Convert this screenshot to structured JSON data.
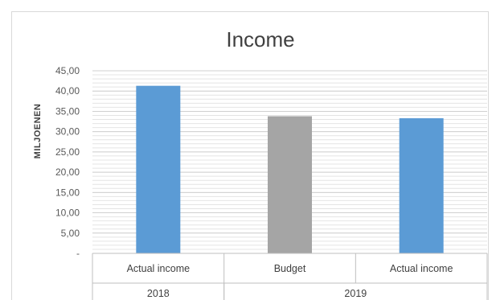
{
  "chart_data": {
    "type": "bar",
    "title": "Income",
    "ylabel": "MILJOENEN",
    "xlabel": "",
    "ylim": [
      0,
      45
    ],
    "ytick_step": 5,
    "ytick_labels": [
      "-",
      "5,00",
      "10,00",
      "15,00",
      "20,00",
      "25,00",
      "30,00",
      "35,00",
      "40,00",
      "45,00"
    ],
    "grid": true,
    "categories": [
      "Actual income",
      "Budget",
      "Actual income"
    ],
    "groups": [
      {
        "label": "2018",
        "categories": [
          "Actual income"
        ]
      },
      {
        "label": "2019",
        "categories": [
          "Budget",
          "Actual income"
        ]
      }
    ],
    "values": [
      41.3,
      33.8,
      33.3
    ],
    "bar_colors": [
      "#5b9bd5",
      "#a5a5a5",
      "#5b9bd5"
    ]
  }
}
